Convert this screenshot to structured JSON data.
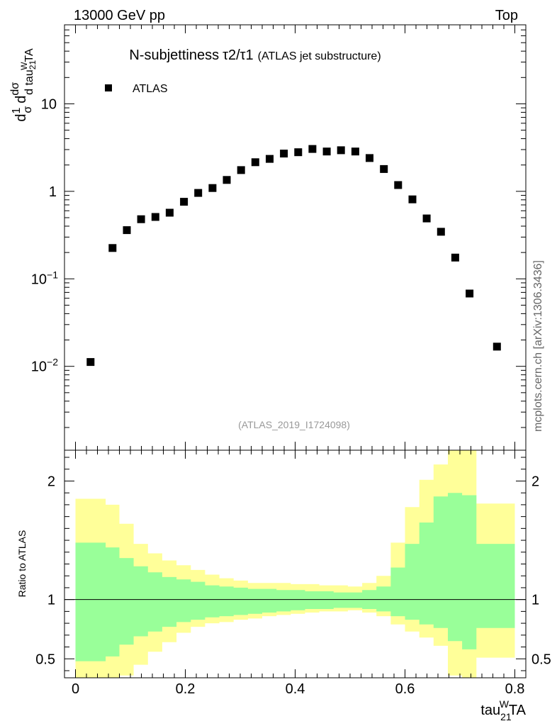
{
  "header": {
    "left": "13000 GeV pp",
    "right": "Top"
  },
  "side_label": "mcplots.cern.ch [arXiv:1306.3436]",
  "chart_data": [
    {
      "type": "scatter",
      "title_main": "N-subjettiness",
      "title_formula": "τ2/τ1",
      "title_note": "(ATLAS jet substructure)",
      "reference": "(ATLAS_2019_I1724098)",
      "ylabel": "1/σ dσ/d tau21WTA",
      "xlabel": "tau21WTA",
      "yscale": "log",
      "xlim": [
        -0.02,
        0.82
      ],
      "ylim": [
        0.0011,
        80
      ],
      "y_ticks": [
        {
          "value": 10,
          "label": "10"
        },
        {
          "value": 1,
          "label": "1"
        },
        {
          "value": 0.1,
          "label": "10",
          "exp": "−1"
        },
        {
          "value": 0.01,
          "label": "10",
          "exp": "−2"
        }
      ],
      "series": [
        {
          "name": "ATLAS",
          "marker": "square",
          "x": [
            0.0275,
            0.0675,
            0.0935,
            0.1195,
            0.1455,
            0.1715,
            0.1975,
            0.2235,
            0.2495,
            0.2755,
            0.3015,
            0.3275,
            0.3535,
            0.3795,
            0.4055,
            0.4315,
            0.4575,
            0.4835,
            0.5095,
            0.5355,
            0.5615,
            0.5875,
            0.6135,
            0.6395,
            0.6655,
            0.6915,
            0.7175,
            0.7675
          ],
          "y": [
            0.0112,
            0.225,
            0.36,
            0.48,
            0.51,
            0.57,
            0.76,
            0.96,
            1.09,
            1.35,
            1.75,
            2.15,
            2.35,
            2.7,
            2.8,
            3.05,
            2.85,
            2.95,
            2.85,
            2.4,
            1.8,
            1.18,
            0.81,
            0.49,
            0.345,
            0.175,
            0.068,
            0.0168
          ]
        }
      ]
    },
    {
      "type": "area",
      "ylabel": "Ratio to ATLAS",
      "xlabel": "tau21WTA",
      "xlim": [
        -0.02,
        0.82
      ],
      "ylim": [
        0.34,
        2.26
      ],
      "x_ticks": [
        0,
        0.2,
        0.4,
        0.6,
        0.8
      ],
      "x_tick_labels": [
        "0",
        "0.2",
        "0.4",
        "0.6",
        "0.8"
      ],
      "y_ticks": [
        0.5,
        1,
        2
      ],
      "y_tick_labels": [
        "0.5",
        "1",
        "2"
      ],
      "reference_line": 1,
      "bin_edges": [
        0.0,
        0.055,
        0.08,
        0.106,
        0.132,
        0.158,
        0.184,
        0.21,
        0.236,
        0.262,
        0.288,
        0.314,
        0.34,
        0.366,
        0.392,
        0.418,
        0.444,
        0.47,
        0.496,
        0.522,
        0.548,
        0.574,
        0.6,
        0.626,
        0.652,
        0.678,
        0.704,
        0.73,
        0.8
      ],
      "bands": [
        {
          "name": "total uncertainty",
          "color": "#ffff99",
          "up": [
            1.85,
            1.8,
            1.64,
            1.47,
            1.39,
            1.33,
            1.29,
            1.25,
            1.21,
            1.18,
            1.16,
            1.14,
            1.14,
            1.14,
            1.13,
            1.13,
            1.12,
            1.12,
            1.11,
            1.14,
            1.2,
            1.48,
            1.78,
            2.01,
            2.14,
            2.26,
            2.26,
            1.81
          ],
          "down": [
            0.27,
            0.27,
            0.36,
            0.45,
            0.56,
            0.64,
            0.72,
            0.77,
            0.8,
            0.81,
            0.83,
            0.84,
            0.86,
            0.87,
            0.88,
            0.89,
            0.9,
            0.9,
            0.91,
            0.89,
            0.86,
            0.79,
            0.73,
            0.68,
            0.61,
            0.36,
            0.26,
            0.51
          ]
        },
        {
          "name": "stat uncertainty",
          "color": "#99ff99",
          "up": [
            1.48,
            1.44,
            1.35,
            1.28,
            1.23,
            1.19,
            1.17,
            1.15,
            1.12,
            1.11,
            1.1,
            1.09,
            1.09,
            1.08,
            1.08,
            1.07,
            1.07,
            1.06,
            1.06,
            1.08,
            1.11,
            1.27,
            1.47,
            1.65,
            1.87,
            1.9,
            1.88,
            1.47
          ],
          "down": [
            0.48,
            0.52,
            0.62,
            0.69,
            0.73,
            0.77,
            0.81,
            0.83,
            0.85,
            0.86,
            0.87,
            0.88,
            0.89,
            0.9,
            0.91,
            0.92,
            0.92,
            0.93,
            0.93,
            0.92,
            0.9,
            0.86,
            0.83,
            0.79,
            0.76,
            0.65,
            0.58,
            0.76
          ]
        }
      ]
    }
  ]
}
